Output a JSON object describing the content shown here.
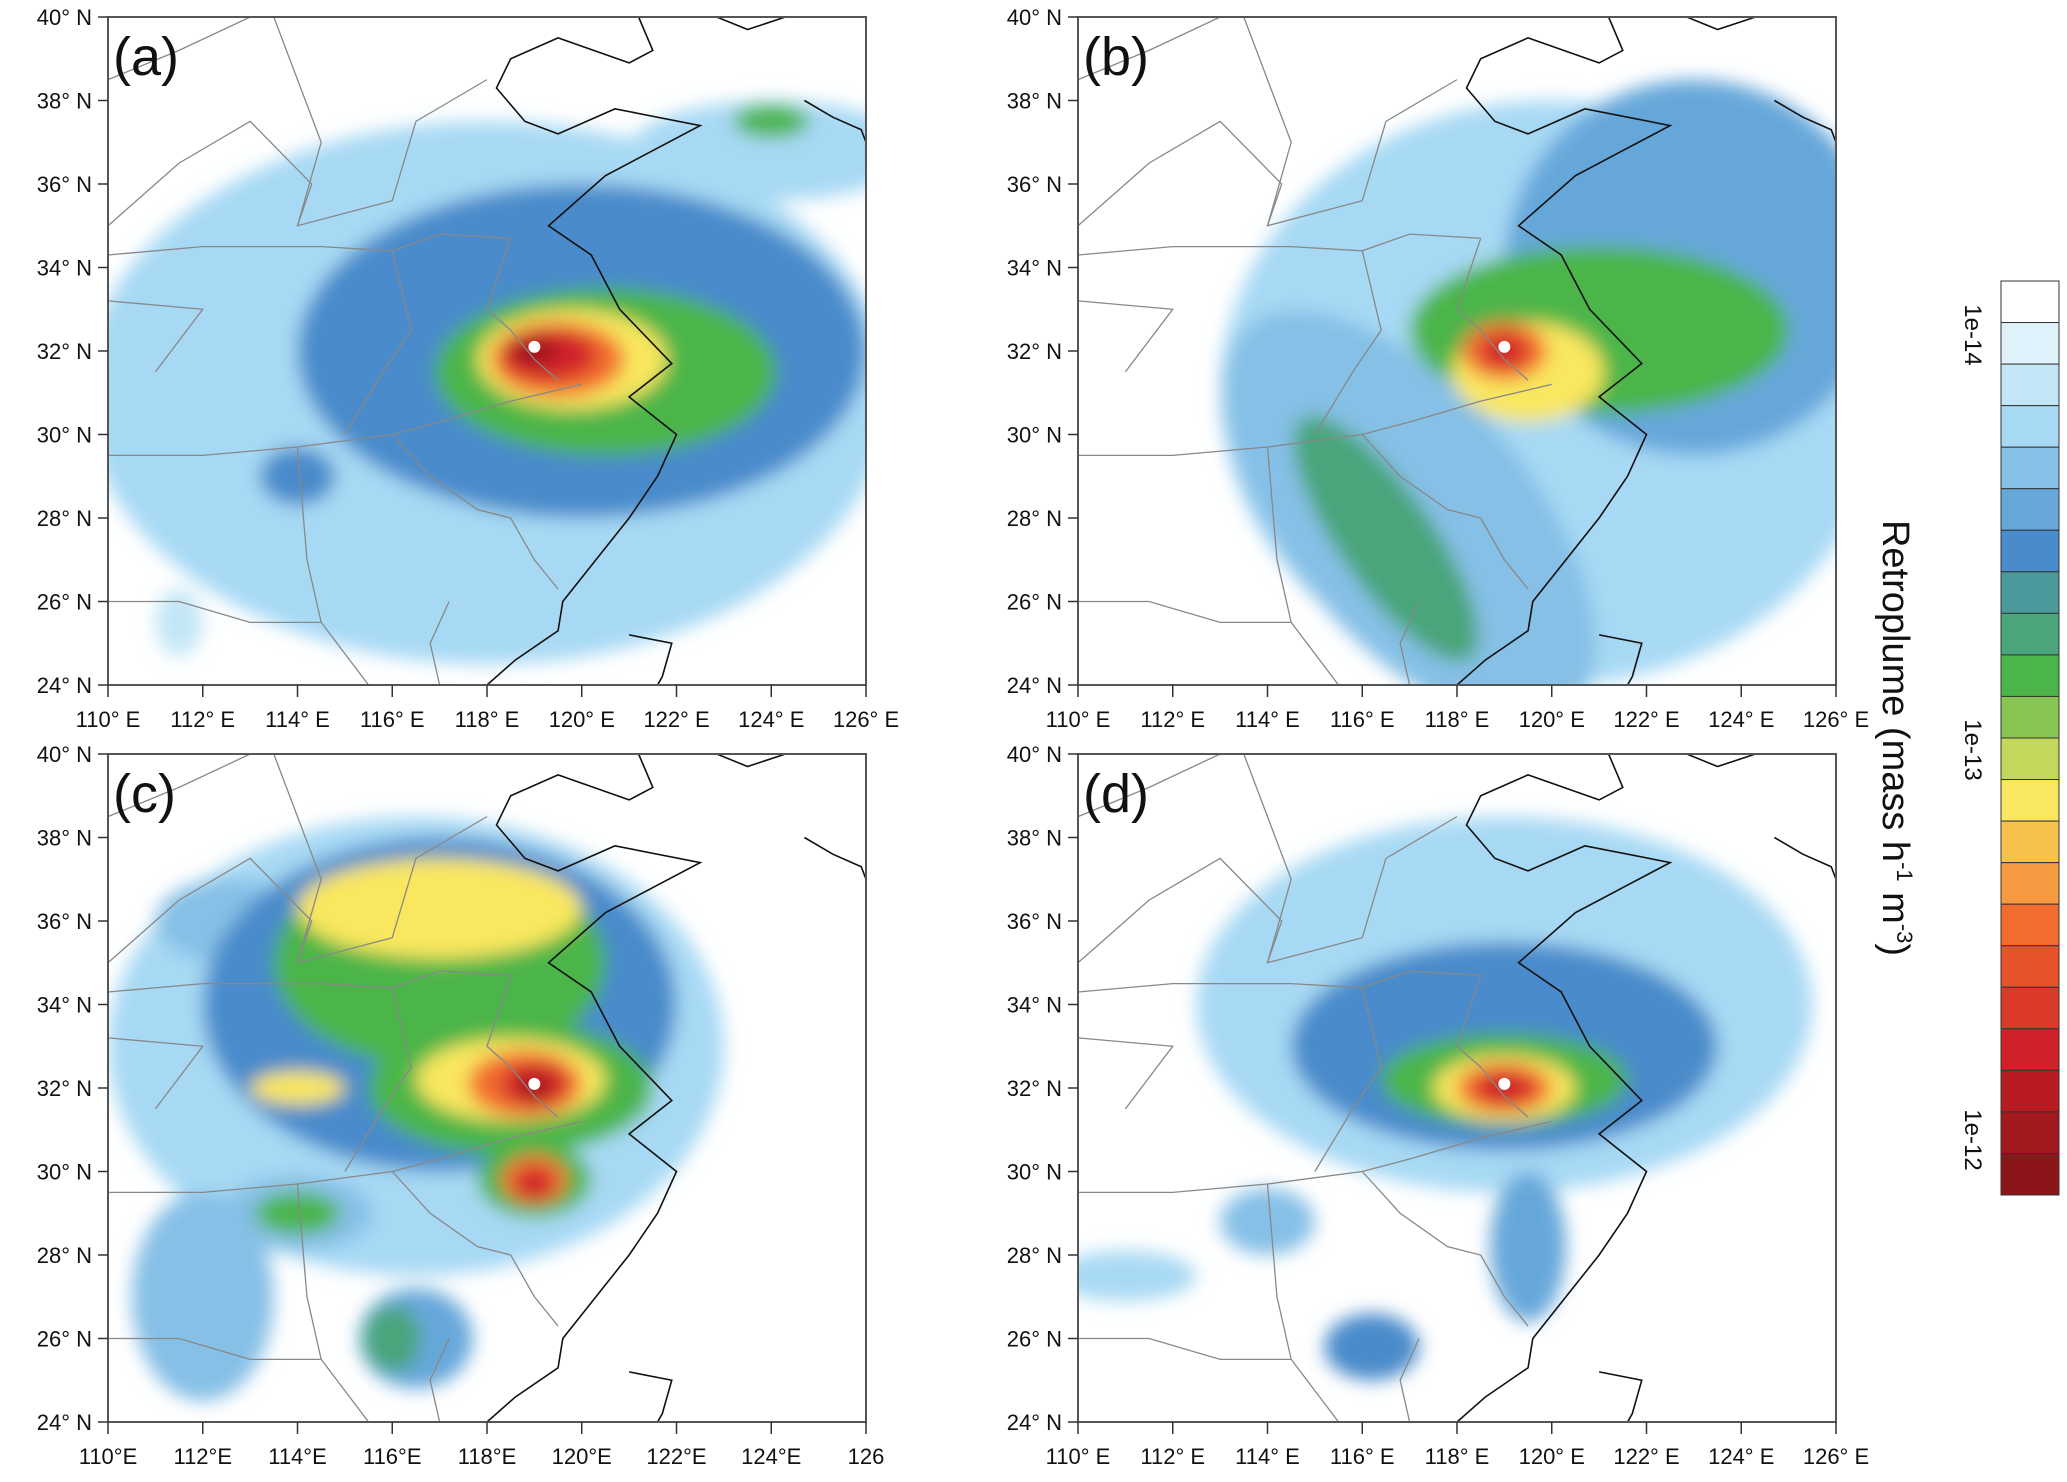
{
  "chart_data": {
    "type": "heatmap",
    "panels": [
      {
        "label": "(a)",
        "lon_ticks": [
          "110° E",
          "112° E",
          "114° E",
          "116° E",
          "118° E",
          "120° E",
          "122° E",
          "124° E",
          "126° E"
        ]
      },
      {
        "label": "(b)",
        "lon_ticks": [
          "110° E",
          "112° E",
          "114° E",
          "116° E",
          "118° E",
          "120° E",
          "122° E",
          "124° E",
          "126° E"
        ]
      },
      {
        "label": "(c)",
        "lon_ticks": [
          "110°E",
          "112°E",
          "114°E",
          "116°E",
          "118°E",
          "120°E",
          "122°E",
          "124°E",
          "126"
        ]
      },
      {
        "label": "(d)",
        "lon_ticks": [
          "110° E",
          "112° E",
          "114° E",
          "116° E",
          "118° E",
          "120° E",
          "122° E",
          "124° E",
          "126° E"
        ]
      }
    ],
    "lat_ticks": [
      "24° N",
      "26° N",
      "28° N",
      "30° N",
      "32° N",
      "34° N",
      "36° N",
      "38° N",
      "40° N"
    ],
    "lon_range": [
      110,
      126
    ],
    "lat_range": [
      24,
      40
    ],
    "source_marker": {
      "lon": 119,
      "lat": 32.1
    },
    "colorbar": {
      "title": "Retroplume (mass h",
      "title_sup1": "-1",
      "title_mid": " m",
      "title_sup2": "-3",
      "title_end": ")",
      "scale": "log",
      "ticks": [
        "1e-14",
        "1e-13",
        "1e-12"
      ],
      "colors": [
        "#ffffff",
        "#dff2fb",
        "#c3e6f7",
        "#a7d9f4",
        "#86c0e6",
        "#66a7da",
        "#4a8bcb",
        "#4a9a9c",
        "#4aa57a",
        "#4cb54a",
        "#86c552",
        "#c3d85a",
        "#f9e75f",
        "#f8c04c",
        "#f59a40",
        "#f26d2d",
        "#e6532b",
        "#dc3a28",
        "#d0202a",
        "#b81b22",
        "#a3191d",
        "#8c1519"
      ]
    }
  }
}
